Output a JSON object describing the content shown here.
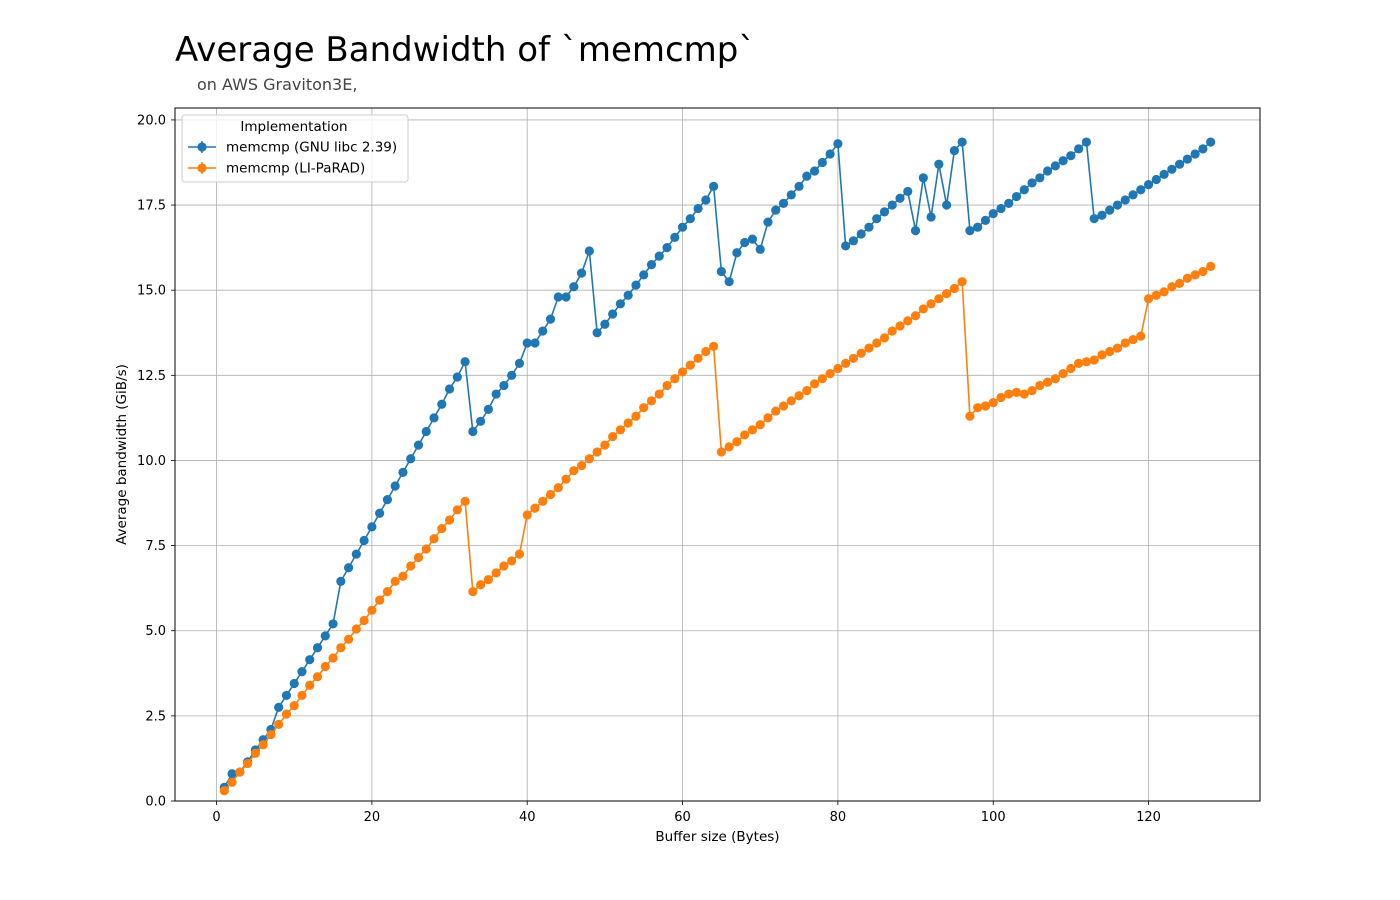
{
  "chart_data": {
    "type": "line",
    "title": "Average Bandwidth of `memcmp`",
    "subtitle": "on AWS Graviton3E,",
    "xlabel": "Buffer size (Bytes)",
    "ylabel": "Average bandwidth (GiB/s)",
    "xlim": [
      -5.35,
      134.35
    ],
    "ylim": [
      0,
      20.35
    ],
    "xticks": [
      0,
      20,
      40,
      60,
      80,
      100,
      120
    ],
    "yticks": [
      0,
      2.5,
      5,
      7.5,
      10,
      12.5,
      15,
      17.5,
      20
    ],
    "xtick_labels": [
      "0",
      "20",
      "40",
      "60",
      "80",
      "100",
      "120"
    ],
    "ytick_labels": [
      "0.0",
      "2.5",
      "5.0",
      "7.5",
      "10.0",
      "12.5",
      "15.0",
      "17.5",
      "20.0"
    ],
    "grid": true,
    "legend": {
      "title": "Implementation",
      "position": "top-left"
    },
    "x": [
      1,
      2,
      3,
      4,
      5,
      6,
      7,
      8,
      9,
      10,
      11,
      12,
      13,
      14,
      15,
      16,
      17,
      18,
      19,
      20,
      21,
      22,
      23,
      24,
      25,
      26,
      27,
      28,
      29,
      30,
      31,
      32,
      33,
      34,
      35,
      36,
      37,
      38,
      39,
      40,
      41,
      42,
      43,
      44,
      45,
      46,
      47,
      48,
      49,
      50,
      51,
      52,
      53,
      54,
      55,
      56,
      57,
      58,
      59,
      60,
      61,
      62,
      63,
      64,
      65,
      66,
      67,
      68,
      69,
      70,
      71,
      72,
      73,
      74,
      75,
      76,
      77,
      78,
      79,
      80,
      81,
      82,
      83,
      84,
      85,
      86,
      87,
      88,
      89,
      90,
      91,
      92,
      93,
      94,
      95,
      96,
      97,
      98,
      99,
      100,
      101,
      102,
      103,
      104,
      105,
      106,
      107,
      108,
      109,
      110,
      111,
      112,
      113,
      114,
      115,
      116,
      117,
      118,
      119,
      120,
      121,
      122,
      123,
      124,
      125,
      126,
      127,
      128
    ],
    "series": [
      {
        "name": "memcmp (GNU libc 2.39)",
        "color": "#1f77b4",
        "values": [
          0.4,
          0.8,
          0.85,
          1.15,
          1.5,
          1.8,
          2.1,
          2.75,
          3.1,
          3.45,
          3.8,
          4.15,
          4.5,
          4.85,
          5.2,
          6.45,
          6.85,
          7.25,
          7.65,
          8.05,
          8.45,
          8.85,
          9.25,
          9.65,
          10.05,
          10.45,
          10.85,
          11.25,
          11.65,
          12.1,
          12.45,
          12.9,
          10.85,
          11.15,
          11.5,
          11.95,
          12.2,
          12.5,
          12.85,
          13.45,
          13.45,
          13.8,
          14.15,
          14.8,
          14.8,
          15.1,
          15.5,
          16.15,
          13.75,
          14.0,
          14.3,
          14.6,
          14.85,
          15.15,
          15.45,
          15.75,
          16.0,
          16.25,
          16.55,
          16.85,
          17.1,
          17.4,
          17.65,
          18.05,
          15.55,
          15.25,
          16.1,
          16.4,
          16.5,
          16.2,
          17.0,
          17.35,
          17.55,
          17.8,
          18.05,
          18.35,
          18.5,
          18.75,
          19.0,
          19.3,
          16.3,
          16.45,
          16.65,
          16.85,
          17.1,
          17.3,
          17.5,
          17.7,
          17.9,
          16.75,
          18.3,
          17.15,
          18.7,
          17.5,
          19.1,
          19.35,
          16.75,
          16.85,
          17.05,
          17.25,
          17.4,
          17.55,
          17.75,
          17.95,
          18.15,
          18.3,
          18.5,
          18.65,
          18.8,
          18.95,
          19.15,
          19.35,
          17.1,
          17.2,
          17.35,
          17.5,
          17.65,
          17.8,
          17.95,
          18.1,
          18.25,
          18.4,
          18.55,
          18.7,
          18.85,
          19.0,
          19.15,
          19.35
        ]
      },
      {
        "name": "memcmp (LI-PaRAD)",
        "color": "#ff7f0e",
        "values": [
          0.3,
          0.55,
          0.85,
          1.1,
          1.4,
          1.65,
          1.95,
          2.25,
          2.55,
          2.8,
          3.1,
          3.4,
          3.65,
          3.95,
          4.2,
          4.5,
          4.75,
          5.05,
          5.3,
          5.6,
          5.9,
          6.15,
          6.45,
          6.6,
          6.9,
          7.15,
          7.4,
          7.7,
          8.0,
          8.25,
          8.55,
          8.8,
          6.15,
          6.35,
          6.5,
          6.7,
          6.9,
          7.05,
          7.25,
          8.4,
          8.6,
          8.8,
          9.0,
          9.2,
          9.45,
          9.7,
          9.85,
          10.05,
          10.25,
          10.45,
          10.7,
          10.9,
          11.1,
          11.3,
          11.55,
          11.75,
          11.95,
          12.2,
          12.4,
          12.6,
          12.8,
          13.0,
          13.2,
          13.35,
          10.25,
          10.4,
          10.55,
          10.75,
          10.9,
          11.05,
          11.25,
          11.45,
          11.6,
          11.75,
          11.9,
          12.05,
          12.25,
          12.4,
          12.55,
          12.7,
          12.85,
          13.0,
          13.15,
          13.3,
          13.45,
          13.6,
          13.8,
          13.95,
          14.1,
          14.25,
          14.45,
          14.6,
          14.75,
          14.9,
          15.05,
          15.25,
          11.3,
          11.55,
          11.6,
          11.7,
          11.85,
          11.95,
          12.0,
          11.95,
          12.05,
          12.2,
          12.3,
          12.4,
          12.55,
          12.7,
          12.85,
          12.9,
          12.95,
          13.1,
          13.2,
          13.3,
          13.45,
          13.55,
          13.65,
          14.75,
          14.85,
          14.95,
          15.1,
          15.2,
          15.35,
          15.45,
          15.55,
          15.7
        ]
      }
    ]
  }
}
